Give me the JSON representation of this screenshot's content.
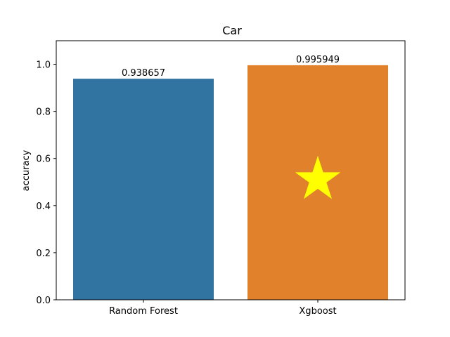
{
  "chart_data": {
    "type": "bar",
    "title": "Car",
    "xlabel": "",
    "ylabel": "accuracy",
    "categories": [
      "Random Forest",
      "Xgboost"
    ],
    "values": [
      0.938657,
      0.995949
    ],
    "data_labels": [
      "0.938657",
      "0.995949"
    ],
    "colors": [
      "#3274a1",
      "#e1812c"
    ],
    "ylim": [
      0,
      1.1
    ],
    "yticks": [
      0.0,
      0.2,
      0.4,
      0.6,
      0.8,
      1.0
    ],
    "ytick_labels": [
      "0.0",
      "0.2",
      "0.4",
      "0.6",
      "0.8",
      "1.0"
    ],
    "grid": false,
    "marker": {
      "shape": "star",
      "category": "Xgboost",
      "y": 0.51,
      "color": "#ffff00"
    }
  }
}
